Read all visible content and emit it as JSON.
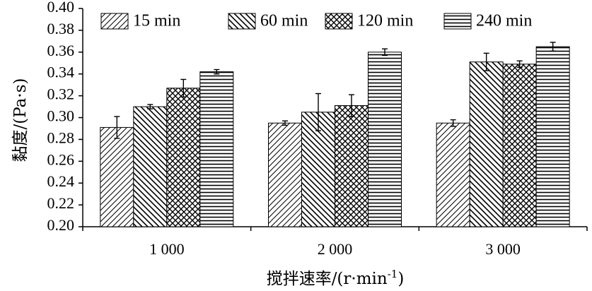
{
  "chart_data": {
    "type": "bar",
    "xlabel": "搅拌速率/(r·min",
    "xlabel_sup": "-1",
    "xlabel_end": ")",
    "ylabel": "黏度/(Pa·s)",
    "ylim": [
      0.2,
      0.4
    ],
    "yticks": [
      "0.20",
      "0.22",
      "0.24",
      "0.26",
      "0.28",
      "0.30",
      "0.32",
      "0.34",
      "0.36",
      "0.38",
      "0.40"
    ],
    "grid": false,
    "legend_position": "top",
    "categories": [
      "1 000",
      "2 000",
      "3 000"
    ],
    "series": [
      {
        "name": "15 min",
        "pattern": "diagonal-up",
        "values": [
          0.291,
          0.295,
          0.295
        ],
        "errors": [
          0.01,
          0.002,
          0.003
        ]
      },
      {
        "name": "60 min",
        "pattern": "diagonal-down",
        "values": [
          0.31,
          0.305,
          0.351
        ],
        "errors": [
          0.002,
          0.017,
          0.008
        ]
      },
      {
        "name": "120 min",
        "pattern": "crosshatch",
        "values": [
          0.327,
          0.311,
          0.349
        ],
        "errors": [
          0.008,
          0.01,
          0.003
        ]
      },
      {
        "name": "240 min",
        "pattern": "horizontal",
        "values": [
          0.342,
          0.36,
          0.365
        ],
        "errors": [
          0.002,
          0.003,
          0.004
        ]
      }
    ]
  }
}
